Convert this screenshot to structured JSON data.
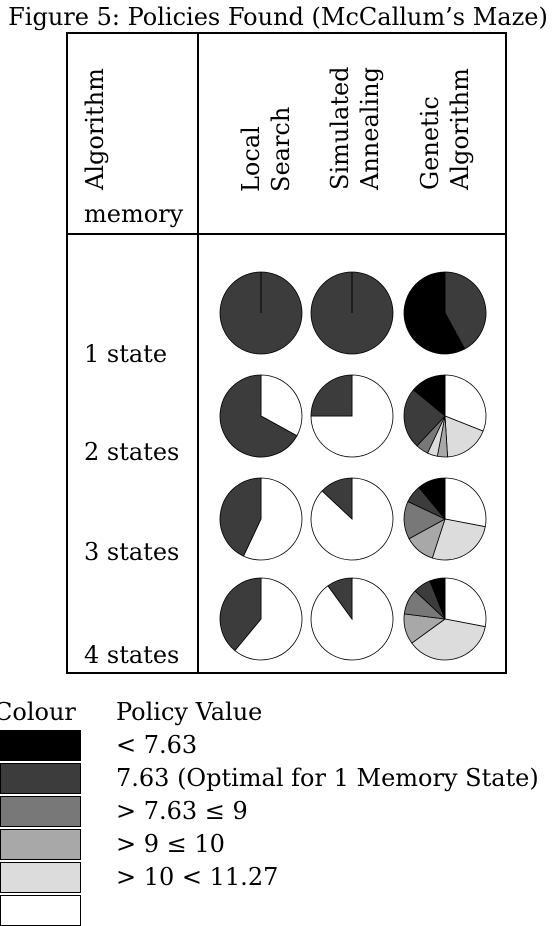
{
  "figure_title": "Figure 5: Policies Found (McCallum’s Maze)",
  "table": {
    "corner_header_line1": "Algorithm",
    "corner_header_line2": "memory",
    "column_headers": [
      {
        "line1": "Local",
        "line2": "Search"
      },
      {
        "line1": "Simulated",
        "line2": "Annealing"
      },
      {
        "line1": "Genetic",
        "line2": "Algorithm"
      }
    ],
    "row_labels": [
      "1 state",
      "2 states",
      "3 states",
      "4 states"
    ]
  },
  "legend": {
    "header_colour": "Colour",
    "header_value": "Policy Value",
    "items": [
      {
        "color": "#000000",
        "label": "< 7.63"
      },
      {
        "color": "#3c3c3c",
        "label": "7.63 (Optimal for 1 Memory State)"
      },
      {
        "color": "#787878",
        "label": "> 7.63 ≤ 9"
      },
      {
        "color": "#a8a8a8",
        "label": "> 9 ≤ 10"
      },
      {
        "color": "#dcdcdc",
        "label": "> 10 < 11.27"
      },
      {
        "color": "#ffffff",
        "label": ""
      }
    ]
  },
  "chart_data": {
    "type": "pie",
    "title": "Figure 5: Policies Found (McCallum’s Maze)",
    "value_categories": [
      "< 7.63",
      "7.63",
      "> 7.63 ≤ 9",
      "> 9 ≤ 10",
      "> 10 < 11.27",
      "unshaded"
    ],
    "pies": [
      {
        "row": "1 state",
        "column": "Local Search",
        "slices": [
          {
            "cat": 1,
            "frac": 1.0
          }
        ]
      },
      {
        "row": "1 state",
        "column": "Simulated Annealing",
        "slices": [
          {
            "cat": 1,
            "frac": 1.0
          }
        ]
      },
      {
        "row": "1 state",
        "column": "Genetic Algorithm",
        "slices": [
          {
            "cat": 1,
            "frac": 0.42
          },
          {
            "cat": 0,
            "frac": 0.58
          }
        ]
      },
      {
        "row": "2 states",
        "column": "Local Search",
        "slices": [
          {
            "cat": 5,
            "frac": 0.33
          },
          {
            "cat": 1,
            "frac": 0.67
          }
        ]
      },
      {
        "row": "2 states",
        "column": "Simulated Annealing",
        "slices": [
          {
            "cat": 5,
            "frac": 0.75
          },
          {
            "cat": 1,
            "frac": 0.25
          }
        ]
      },
      {
        "row": "2 states",
        "column": "Genetic Algorithm",
        "slices": [
          {
            "cat": 5,
            "frac": 0.31
          },
          {
            "cat": 4,
            "frac": 0.18
          },
          {
            "cat": 3,
            "frac": 0.04
          },
          {
            "cat": 4,
            "frac": 0.04
          },
          {
            "cat": 2,
            "frac": 0.05
          },
          {
            "cat": 1,
            "frac": 0.24
          },
          {
            "cat": 0,
            "frac": 0.14
          }
        ]
      },
      {
        "row": "3 states",
        "column": "Local Search",
        "slices": [
          {
            "cat": 5,
            "frac": 0.57
          },
          {
            "cat": 1,
            "frac": 0.43
          }
        ]
      },
      {
        "row": "3 states",
        "column": "Simulated Annealing",
        "slices": [
          {
            "cat": 5,
            "frac": 0.87
          },
          {
            "cat": 1,
            "frac": 0.13
          }
        ]
      },
      {
        "row": "3 states",
        "column": "Genetic Algorithm",
        "slices": [
          {
            "cat": 5,
            "frac": 0.28
          },
          {
            "cat": 4,
            "frac": 0.27
          },
          {
            "cat": 3,
            "frac": 0.12
          },
          {
            "cat": 2,
            "frac": 0.15
          },
          {
            "cat": 1,
            "frac": 0.07
          },
          {
            "cat": 0,
            "frac": 0.11
          }
        ]
      },
      {
        "row": "4 states",
        "column": "Local Search",
        "slices": [
          {
            "cat": 5,
            "frac": 0.61
          },
          {
            "cat": 1,
            "frac": 0.39
          }
        ]
      },
      {
        "row": "4 states",
        "column": "Simulated Annealing",
        "slices": [
          {
            "cat": 5,
            "frac": 0.9
          },
          {
            "cat": 1,
            "frac": 0.1
          }
        ]
      },
      {
        "row": "4 states",
        "column": "Genetic Algorithm",
        "slices": [
          {
            "cat": 5,
            "frac": 0.28
          },
          {
            "cat": 4,
            "frac": 0.37
          },
          {
            "cat": 3,
            "frac": 0.12
          },
          {
            "cat": 2,
            "frac": 0.1
          },
          {
            "cat": 1,
            "frac": 0.07
          },
          {
            "cat": 0,
            "frac": 0.06
          }
        ]
      }
    ]
  }
}
